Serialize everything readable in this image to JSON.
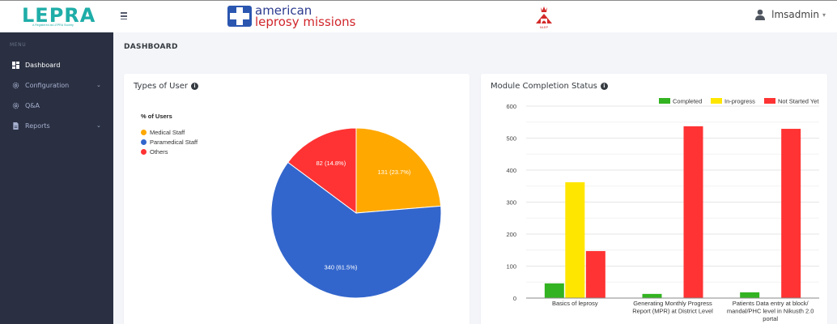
{
  "header": {
    "brand": "LEPRA",
    "brand_subtitle": "A Registered as LEPRA Society",
    "partner_line1": "american",
    "partner_line2": "leprosy missions",
    "nlep_label": "NLEP",
    "username": "lmsadmin",
    "user_caret": "▾",
    "menu_icon": "hamburger-icon"
  },
  "sidebar": {
    "menu_title": "MENU",
    "items": [
      {
        "label": "Dashboard",
        "icon": "dashboard-icon",
        "active": true,
        "has_caret": false
      },
      {
        "label": "Configuration",
        "icon": "gear-icon",
        "active": false,
        "has_caret": true
      },
      {
        "label": "Q&A",
        "icon": "gear-icon",
        "active": false,
        "has_caret": false
      },
      {
        "label": "Reports",
        "icon": "report-icon",
        "active": false,
        "has_caret": true
      }
    ],
    "caret": "⌄"
  },
  "page": {
    "title": "DASHBOARD"
  },
  "cards": {
    "types_of_user": {
      "title": "Types of User",
      "info": "i"
    },
    "module_status": {
      "title": "Module Completion Status",
      "info": "i"
    }
  },
  "colors": {
    "sidebar_bg": "#2a3042",
    "page_bg": "#f4f5f9",
    "brand_teal": "#1fada8",
    "medical_staff": "#ffa800",
    "paramedical_staff": "#3366cc",
    "others": "#ff3333",
    "completed": "#33b321",
    "in_progress": "#ffe600",
    "not_started": "#ff3333"
  },
  "chart_data": [
    {
      "type": "pie",
      "title": "Types of User",
      "legend_title": "% of Users",
      "legend_position": "left",
      "categories": [
        "Medical Staff",
        "Paramedical Staff",
        "Others"
      ],
      "values": [
        131,
        340,
        82
      ],
      "percentages": [
        23.7,
        61.5,
        14.8
      ],
      "labels": [
        "131 (23.7%)",
        "340 (61.5%)",
        "82 (14.8%)"
      ],
      "colors": [
        "#ffa800",
        "#3366cc",
        "#ff3333"
      ]
    },
    {
      "type": "bar",
      "title": "Module Completion Status",
      "legend_position": "top-right",
      "categories": [
        "Basics of leprosy",
        "Generating Monthly Progress Report (MPR) at District Level",
        "Patients Data entry at block/ mandal/PHC level in Nikusth 2.0 portal"
      ],
      "category_label_lines": [
        [
          "Basics of leprosy"
        ],
        [
          "Generating Monthly Progress",
          "Report (MPR) at District Level"
        ],
        [
          "Patients Data entry at block/",
          "mandal/PHC level in Nikusth 2.0",
          "portal"
        ]
      ],
      "series": [
        {
          "name": "Completed",
          "color": "#33b321",
          "values": [
            46,
            13,
            18
          ]
        },
        {
          "name": "In-progress",
          "color": "#ffe600",
          "values": [
            362,
            0,
            0
          ]
        },
        {
          "name": "Not Started Yet",
          "color": "#ff3333",
          "values": [
            147,
            537,
            529
          ]
        }
      ],
      "ylim": [
        0,
        600
      ],
      "yticks": [
        0,
        100,
        200,
        300,
        400,
        500,
        600
      ],
      "grid": true,
      "xlabel": "",
      "ylabel": ""
    }
  ]
}
